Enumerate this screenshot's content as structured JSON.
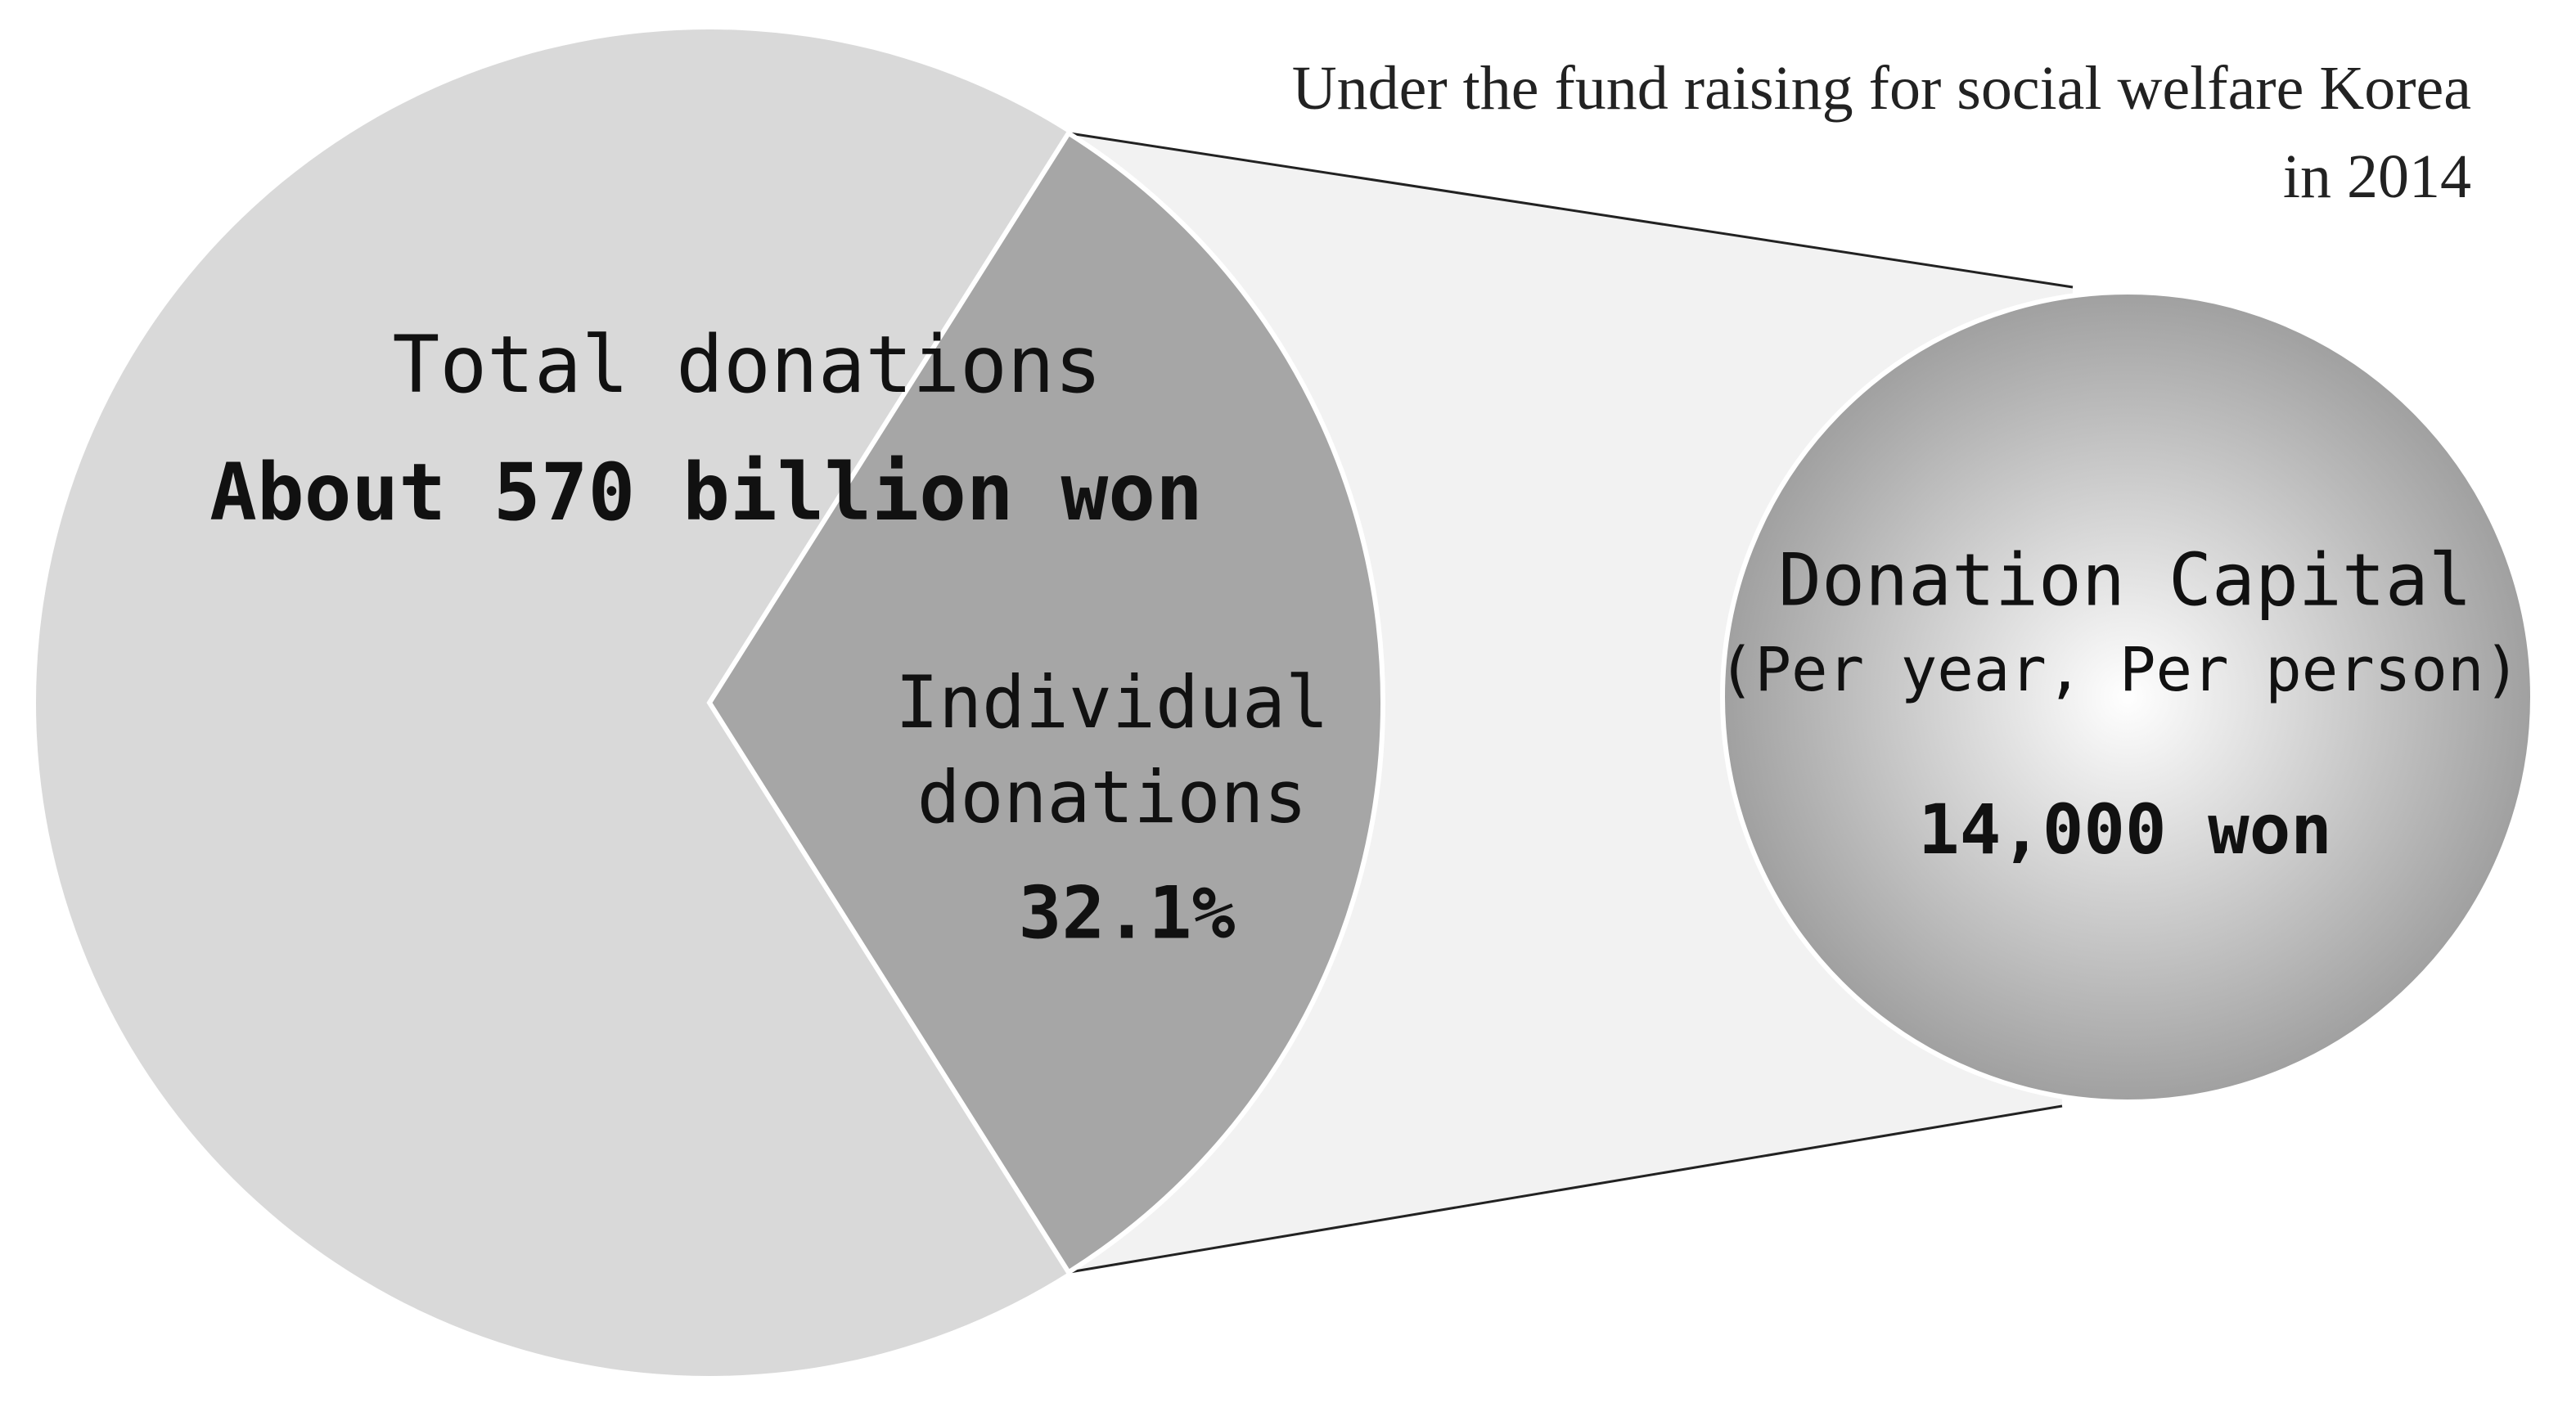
{
  "chart_data": {
    "type": "pie",
    "title": "Under the fund raising for social welfare Korea in 2014",
    "total": {
      "label": "Total donations",
      "value": 570,
      "value_label": "About 570 billion won",
      "color": "#d9d9d9"
    },
    "categories": [
      "Individual donations"
    ],
    "values": [
      32.1
    ],
    "value_labels": [
      "32.1%"
    ],
    "colors": [
      "#a6a6a6"
    ],
    "per_person": {
      "label": "Donation Capital",
      "sublabel": "(Per year, Per person)",
      "value": 14000,
      "value_label": "14,000 won"
    }
  }
}
